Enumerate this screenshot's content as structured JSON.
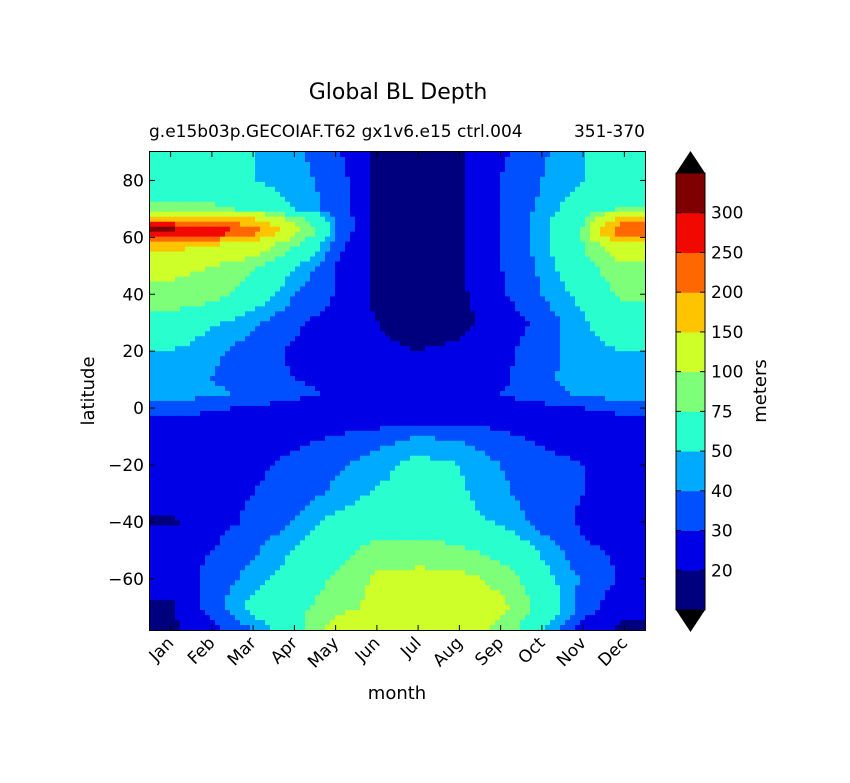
{
  "chart_data": {
    "type": "heatmap",
    "subtype": "filled-contour",
    "title": "Global BL Depth",
    "subtitle_left": "g.e15b03p.GECOIAF.T62 gx1v6.e15 ctrl.004",
    "subtitle_right": "351-370",
    "xlabel": "month",
    "ylabel": "latitude",
    "x_tick_labels": [
      "Jan",
      "Feb",
      "Mar",
      "Apr",
      "May",
      "Jun",
      "Jul",
      "Aug",
      "Sep",
      "Oct",
      "Nov",
      "Dec"
    ],
    "y_ticks": [
      80,
      60,
      40,
      20,
      0,
      -20,
      -40,
      -60
    ],
    "y_tick_labels": [
      "80",
      "60",
      "40",
      "20",
      "0",
      "−20",
      "−40",
      "−60"
    ],
    "ylim": [
      -78,
      90
    ],
    "colorbar": {
      "label": "meters",
      "levels": [
        10,
        20,
        30,
        40,
        50,
        75,
        100,
        150,
        200,
        250,
        300,
        350
      ],
      "tick_values": [
        20,
        30,
        40,
        50,
        75,
        100,
        150,
        200,
        250,
        300
      ],
      "tick_labels": [
        "20",
        "30",
        "40",
        "50",
        "75",
        "100",
        "150",
        "200",
        "250",
        "300"
      ],
      "colors": [
        "#00007f",
        "#0000e6",
        "#0050ff",
        "#00aaff",
        "#29ffce",
        "#7dff7a",
        "#ceff29",
        "#ffc400",
        "#ff6800",
        "#f10800",
        "#7f0000"
      ],
      "extend": "both",
      "under_color": "#000000",
      "over_color": "#000000"
    },
    "y_samples": [
      -78,
      -70,
      -60,
      -50,
      -40,
      -30,
      -20,
      -10,
      -5,
      0,
      5,
      10,
      20,
      30,
      40,
      50,
      58,
      62,
      66,
      70,
      80,
      90
    ],
    "x_samples": [
      0,
      1,
      2,
      3,
      4,
      5,
      6,
      7,
      8,
      9,
      10,
      11
    ],
    "z_values": [
      [
        18,
        25,
        40,
        60,
        120,
        140,
        130,
        120,
        90,
        50,
        25,
        18
      ],
      [
        18,
        35,
        55,
        70,
        85,
        110,
        125,
        125,
        110,
        65,
        35,
        22
      ],
      [
        25,
        32,
        45,
        58,
        78,
        105,
        110,
        110,
        90,
        55,
        38,
        28
      ],
      [
        28,
        30,
        38,
        50,
        65,
        85,
        85,
        80,
        65,
        48,
        32,
        28
      ],
      [
        18,
        26,
        32,
        40,
        55,
        60,
        60,
        55,
        48,
        35,
        28,
        20
      ],
      [
        26,
        28,
        30,
        35,
        42,
        52,
        55,
        52,
        42,
        35,
        30,
        28
      ],
      [
        28,
        28,
        28,
        32,
        38,
        45,
        55,
        50,
        40,
        33,
        30,
        28
      ],
      [
        25,
        25,
        26,
        28,
        30,
        35,
        40,
        38,
        32,
        28,
        26,
        25
      ],
      [
        25,
        25,
        25,
        25,
        26,
        26,
        28,
        28,
        27,
        26,
        25,
        25
      ],
      [
        35,
        32,
        28,
        26,
        25,
        25,
        25,
        25,
        26,
        27,
        30,
        34
      ],
      [
        45,
        42,
        38,
        33,
        28,
        28,
        28,
        28,
        30,
        35,
        42,
        45
      ],
      [
        45,
        40,
        35,
        30,
        28,
        25,
        25,
        26,
        28,
        38,
        45,
        45
      ],
      [
        50,
        42,
        35,
        28,
        24,
        22,
        20,
        22,
        27,
        35,
        45,
        50
      ],
      [
        65,
        52,
        42,
        32,
        25,
        20,
        15,
        17,
        24,
        33,
        48,
        62
      ],
      [
        90,
        85,
        60,
        40,
        30,
        18,
        16,
        18,
        28,
        40,
        55,
        80
      ],
      [
        110,
        100,
        80,
        50,
        30,
        18,
        15,
        18,
        30,
        42,
        65,
        95
      ],
      [
        170,
        160,
        130,
        80,
        35,
        16,
        15,
        18,
        30,
        45,
        75,
        140
      ],
      [
        330,
        300,
        230,
        110,
        40,
        16,
        15,
        18,
        30,
        45,
        80,
        260
      ],
      [
        210,
        200,
        160,
        90,
        40,
        17,
        15,
        18,
        30,
        45,
        70,
        190
      ],
      [
        80,
        80,
        65,
        48,
        35,
        18,
        15,
        18,
        30,
        42,
        60,
        75
      ],
      [
        65,
        60,
        50,
        45,
        35,
        18,
        15,
        18,
        30,
        40,
        50,
        60
      ],
      [
        60,
        58,
        50,
        42,
        32,
        18,
        15,
        18,
        28,
        38,
        50,
        58
      ]
    ]
  }
}
